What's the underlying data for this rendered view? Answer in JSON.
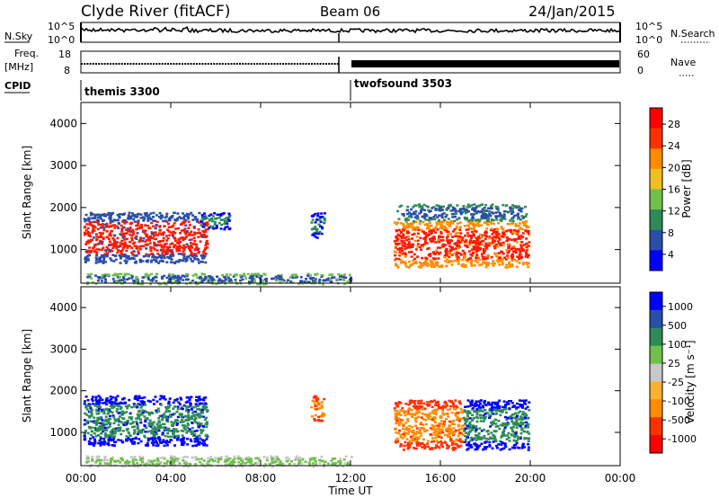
{
  "header": {
    "station": "Clyde River (fitACF)",
    "beam": "Beam 06",
    "date": "24/Jan/2015"
  },
  "noise_panel": {
    "left_label": "N.Sky",
    "right_label": "N.Search",
    "left_ticks": [
      "10^5",
      "10^0"
    ],
    "right_ticks": [
      "10^5",
      "10^0"
    ]
  },
  "freq_panel": {
    "left_label": "Freq.",
    "left_unit": "[MHz]",
    "left_ticks": [
      "18",
      "8"
    ],
    "right_label": "Nave",
    "right_ticks": [
      "60",
      "0"
    ]
  },
  "cpid_panel": {
    "label": "CPID",
    "programs": [
      {
        "name": "themis 3300",
        "start_hour": 0
      },
      {
        "name": "twofsound 3503",
        "start_hour": 12
      }
    ]
  },
  "colors": {
    "power": [
      "#0000ff",
      "#2a4ea8",
      "#2e8b57",
      "#6fc04a",
      "#f0c020",
      "#ff8c00",
      "#ff3000",
      "#ff0000"
    ],
    "velocity": [
      "#ff0000",
      "#ff3000",
      "#ff8c00",
      "#ffb030",
      "#c8c8c8",
      "#6fc04a",
      "#2e8b57",
      "#2a4ea8",
      "#0000ff"
    ]
  },
  "chart_data": [
    {
      "type": "heatmap",
      "name": "power",
      "ylabel": "Slant Range [km]",
      "ylim": [
        200,
        4500
      ],
      "yticks": [
        "4000",
        "3000",
        "2000",
        "1000"
      ],
      "ytick_values": [
        4000,
        3000,
        2000,
        1000
      ],
      "colorbar_label": "Power [dB]",
      "colorbar_ticks": [
        "28",
        "24",
        "20",
        "16",
        "12",
        "8",
        "4"
      ],
      "scatter_regions": [
        {
          "x": [
            0.1,
            5.6
          ],
          "y": [
            700,
            1900
          ],
          "core": "#ff1800",
          "edge": "#2a4ea8"
        },
        {
          "x": [
            5.3,
            6.6
          ],
          "y": [
            1500,
            1900
          ],
          "core": "#2e8b57",
          "edge": "#0000ff"
        },
        {
          "x": [
            10.2,
            10.8
          ],
          "y": [
            1300,
            1900
          ],
          "core": "#2e8b57",
          "edge": "#0000ff"
        },
        {
          "x": [
            13.9,
            19.9
          ],
          "y": [
            600,
            1700
          ],
          "core": "#ff1800",
          "edge": "#ff8c00"
        },
        {
          "x": [
            14.0,
            19.8
          ],
          "y": [
            1700,
            2100
          ],
          "core": "#2a4ea8",
          "edge": "#2e8b57"
        },
        {
          "x": [
            0.2,
            12.0
          ],
          "y": [
            200,
            450
          ],
          "core": "#2a4ea8",
          "edge": "#6fc04a"
        }
      ]
    },
    {
      "type": "heatmap",
      "name": "velocity",
      "ylabel": "Slant Range [km]",
      "ylim": [
        200,
        4500
      ],
      "yticks": [
        "4000",
        "3000",
        "2000",
        "1000"
      ],
      "ytick_values": [
        4000,
        3000,
        2000,
        1000
      ],
      "colorbar_label": "Velocity [m s⁻¹]",
      "colorbar_ticks": [
        "1000",
        "500",
        "100",
        "25",
        "-25",
        "-100",
        "-500",
        "-1000"
      ],
      "scatter_regions": [
        {
          "x": [
            0.1,
            5.6
          ],
          "y": [
            700,
            1900
          ],
          "core": "#2e8b57",
          "edge": "#0000ff"
        },
        {
          "x": [
            10.2,
            10.8
          ],
          "y": [
            1300,
            1900
          ],
          "core": "#ff8c00",
          "edge": "#ff3000"
        },
        {
          "x": [
            13.9,
            17.0
          ],
          "y": [
            600,
            1800
          ],
          "core": "#ff8c00",
          "edge": "#ff3000"
        },
        {
          "x": [
            17.0,
            19.9
          ],
          "y": [
            600,
            1800
          ],
          "core": "#2e8b57",
          "edge": "#0000ff"
        },
        {
          "x": [
            0.2,
            12.0
          ],
          "y": [
            200,
            450
          ],
          "core": "#6fc04a",
          "edge": "#c8c8c8"
        }
      ]
    }
  ],
  "x_axis": {
    "label": "Time UT",
    "ticks": [
      "00:00",
      "04:00",
      "08:00",
      "12:00",
      "16:00",
      "20:00",
      "00:00"
    ],
    "tick_hours": [
      0,
      4,
      8,
      12,
      16,
      20,
      24
    ],
    "range_hours": [
      0,
      24
    ]
  }
}
